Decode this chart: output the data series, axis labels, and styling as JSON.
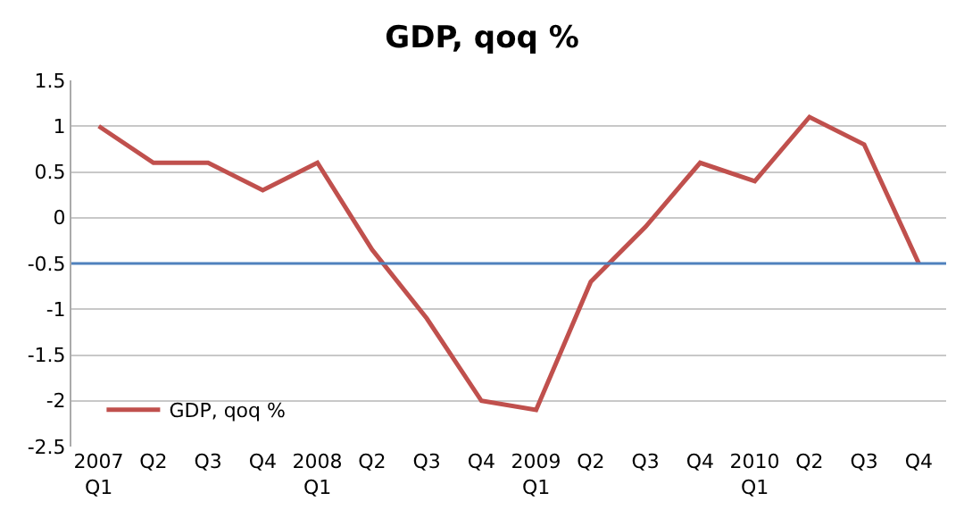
{
  "chart_data": {
    "type": "line",
    "title": "GDP, qoq %",
    "categories": [
      "2007 Q1",
      "Q2",
      "Q3",
      "Q4",
      "2008 Q1",
      "Q2",
      "Q3",
      "Q4",
      "2009 Q1",
      "Q2",
      "Q3",
      "Q4",
      "2010 Q1",
      "Q2",
      "Q3",
      "Q4"
    ],
    "series": [
      {
        "name": "GDP, qoq %",
        "color": "#c0504d",
        "values": [
          1.0,
          0.6,
          0.6,
          0.3,
          0.6,
          -0.35,
          -1.1,
          -2.0,
          -2.1,
          -0.7,
          -0.1,
          0.6,
          0.4,
          1.1,
          0.8,
          -0.5
        ]
      }
    ],
    "ylim": [
      -2.5,
      1.5
    ],
    "yticks": [
      -2.5,
      -2,
      -1.5,
      -1,
      -0.5,
      0,
      0.5,
      1,
      1.5
    ],
    "ref_lines": [
      {
        "axis": "y",
        "value": -0.5,
        "color": "#4f81bd"
      }
    ],
    "grid": "y",
    "legend": "bottom left",
    "marker": "none",
    "line_style": "solid"
  }
}
